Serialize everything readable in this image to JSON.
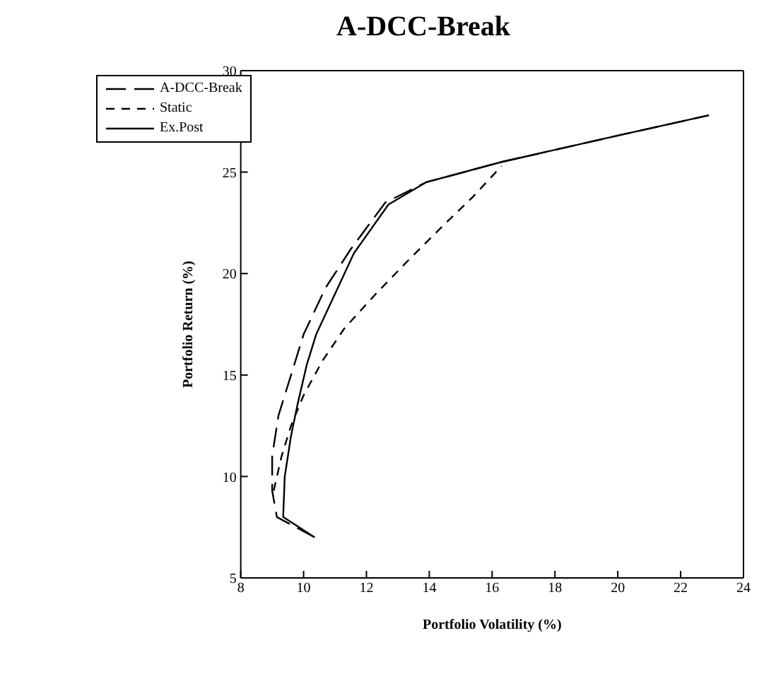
{
  "chart_data": {
    "type": "line",
    "title": "A-DCC-Break",
    "xlabel": "Portfolio Volatility (%)",
    "ylabel": "Portfolio Return (%)",
    "xlim": [
      8,
      24
    ],
    "xticks": [
      8,
      10,
      12,
      14,
      16,
      18,
      20,
      22,
      24
    ],
    "ylim": [
      5,
      30
    ],
    "yticks": [
      5,
      10,
      15,
      20,
      25,
      30
    ],
    "legend": "top left",
    "marker": "none",
    "series": [
      {
        "name": "A-DCC-Break",
        "color": "#000000",
        "line_style": "dashed",
        "x": [
          10.35,
          9.15,
          9.0,
          9.0,
          9.2,
          9.6,
          10.0,
          10.7,
          11.5,
          12.6,
          13.9,
          16.3,
          20.0,
          22.9
        ],
        "values": [
          7.0,
          8.0,
          9.3,
          11.0,
          13.0,
          15.0,
          17.0,
          19.3,
          21.2,
          23.5,
          24.5,
          25.5,
          26.8,
          27.8
        ]
      },
      {
        "name": "Static",
        "color": "#000000",
        "line_style": "dashed",
        "x": [
          9.05,
          9.3,
          9.6,
          10.0,
          10.6,
          11.3,
          12.3,
          13.3,
          14.4,
          15.4,
          16.3
        ],
        "values": [
          9.3,
          11.0,
          12.5,
          14.0,
          15.7,
          17.3,
          19.0,
          20.6,
          22.3,
          23.8,
          25.3
        ]
      },
      {
        "name": "Ex.Post",
        "color": "#000000",
        "line_style": "solid",
        "x": [
          10.35,
          9.35,
          9.4,
          9.6,
          9.8,
          10.1,
          10.4,
          11.0,
          11.6,
          12.7,
          13.9,
          16.3,
          20.0,
          22.9
        ],
        "values": [
          7.0,
          8.0,
          10.0,
          12.0,
          13.5,
          15.5,
          17.0,
          19.0,
          21.0,
          23.4,
          24.5,
          25.5,
          26.8,
          27.8
        ]
      }
    ]
  }
}
